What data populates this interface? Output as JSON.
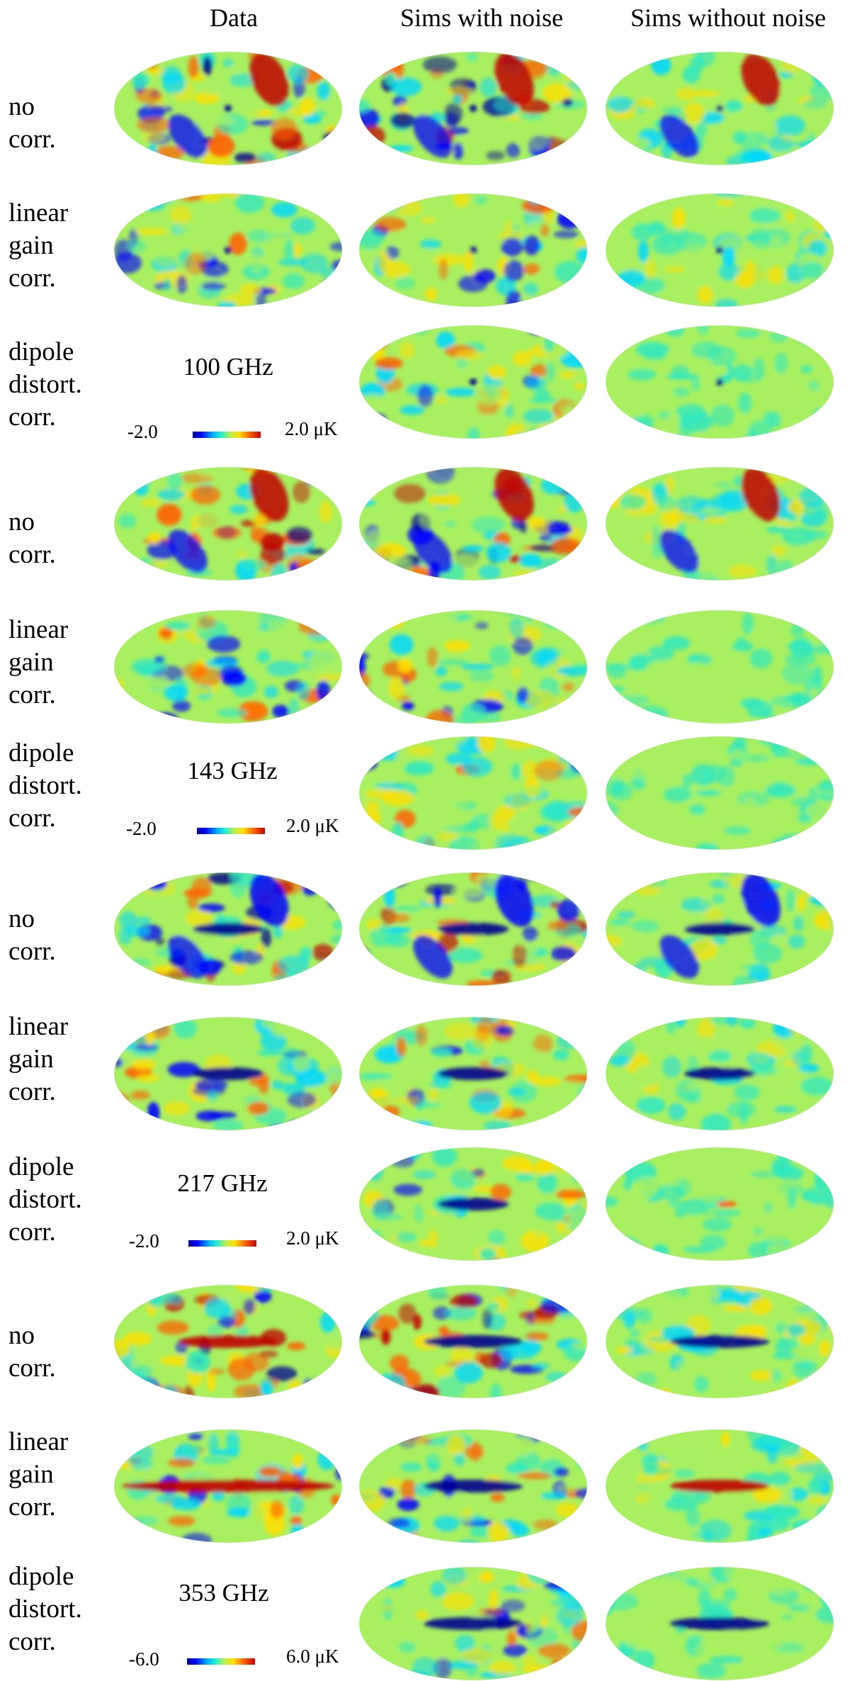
{
  "columns": [
    "Data",
    "Sims with noise",
    "Sims without noise"
  ],
  "row_labels": {
    "no_corr": [
      "no",
      "corr."
    ],
    "linear_gain": [
      "linear",
      "gain",
      "corr."
    ],
    "dipole_distort": [
      "dipole",
      "distort.",
      "corr."
    ]
  },
  "blocks": [
    {
      "frequency": "100 GHz",
      "cbar_min": "-2.0",
      "cbar_max": "2.0 μK"
    },
    {
      "frequency": "143 GHz",
      "cbar_min": "-2.0",
      "cbar_max": "2.0 μK"
    },
    {
      "frequency": "217 GHz",
      "cbar_min": "-2.0",
      "cbar_max": "2.0 μK"
    },
    {
      "frequency": "353 GHz",
      "cbar_min": "-6.0",
      "cbar_max": "6.0 μK"
    }
  ],
  "colors": {
    "dark_blue": "#00008f",
    "blue": "#0000ff",
    "cyan": "#00d8ff",
    "teal": "#30e8c0",
    "green": "#a8f060",
    "yellow": "#ffe000",
    "orange": "#ff6000",
    "red": "#c00000"
  }
}
